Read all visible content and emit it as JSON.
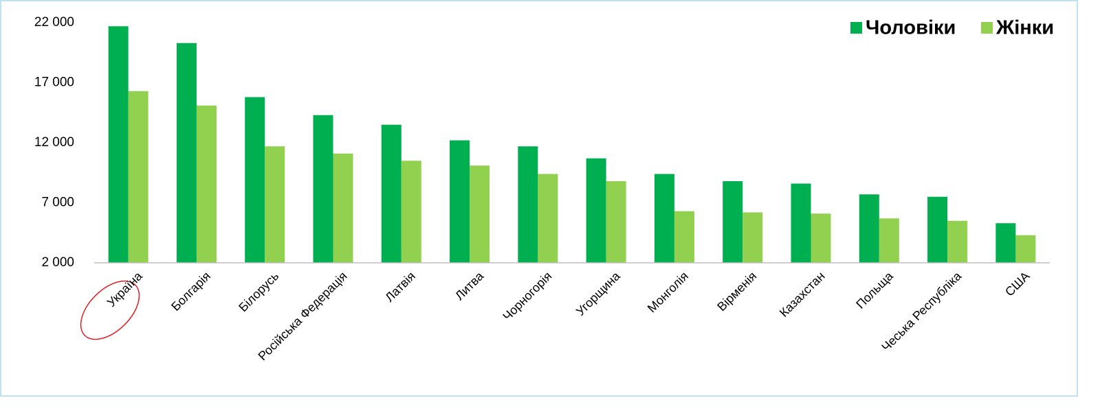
{
  "chart_data": {
    "type": "bar",
    "categories": [
      "Україна",
      "Болгарія",
      "Білорусь",
      "Російська Федерація",
      "Латвія",
      "Литва",
      "Чорногорія",
      "Угорщина",
      "Монголія",
      "Вірменія",
      "Казахстан",
      "Польща",
      "Чеська Республіка",
      "США"
    ],
    "series": [
      {
        "name": "Чоловіки",
        "color": "#00b050",
        "values": [
          21700,
          20300,
          15800,
          14300,
          13500,
          12200,
          11700,
          10700,
          9400,
          8800,
          8600,
          7700,
          7500,
          5300
        ]
      },
      {
        "name": "Жінки",
        "color": "#92d050",
        "values": [
          16300,
          15100,
          11700,
          11100,
          10500,
          10100,
          9400,
          8800,
          6300,
          6200,
          6100,
          5700,
          5500,
          4300
        ]
      }
    ],
    "ylim": [
      2000,
      22000
    ],
    "yticks": [
      {
        "value": 2000,
        "label": "2 000"
      },
      {
        "value": 7000,
        "label": "7 000"
      },
      {
        "value": 12000,
        "label": "12 000"
      },
      {
        "value": 17000,
        "label": "17 000"
      },
      {
        "value": 22000,
        "label": "22 000"
      }
    ],
    "legend": "top-right"
  }
}
